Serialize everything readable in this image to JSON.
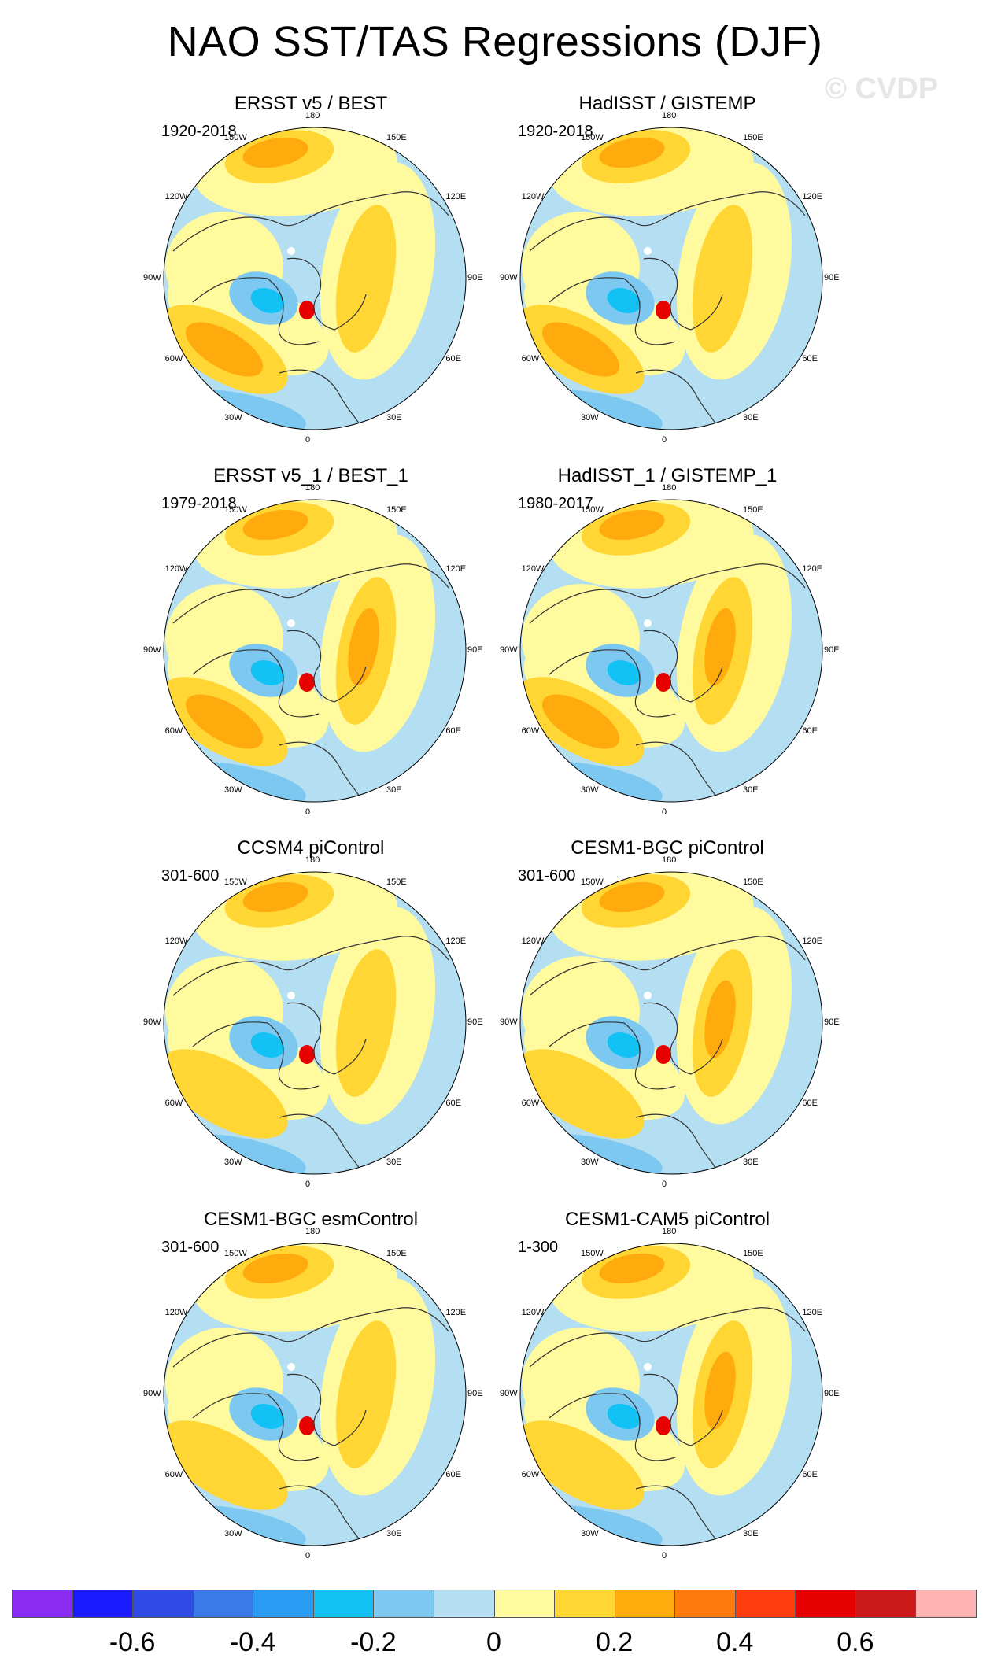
{
  "title": "NAO SST/TAS Regressions (DJF)",
  "watermark": "© CVDP",
  "longitude_labels": [
    "180",
    "150E",
    "120E",
    "90E",
    "60E",
    "30E",
    "0",
    "30W",
    "60W",
    "90W",
    "120W",
    "150W"
  ],
  "panels": [
    {
      "title": "ERSST v5 / BEST",
      "period": "1920-2018"
    },
    {
      "title": "HadISST / GISTEMP",
      "period": "1920-2018"
    },
    {
      "title": "ERSST v5_1 / BEST_1",
      "period": "1979-2018"
    },
    {
      "title": "HadISST_1 / GISTEMP_1",
      "period": "1980-2017"
    },
    {
      "title": "CCSM4 piControl",
      "period": "301-600"
    },
    {
      "title": "CESM1-BGC piControl",
      "period": "301-600"
    },
    {
      "title": "CESM1-BGC esmControl",
      "period": "301-600"
    },
    {
      "title": "CESM1-CAM5 piControl",
      "period": "1-300"
    }
  ],
  "colorbar": {
    "colors": [
      "#8b2cf2",
      "#1a1aff",
      "#2f4de6",
      "#3a7ae8",
      "#2a9bf2",
      "#12c2f5",
      "#7cc8f0",
      "#b4def2",
      "#fffa9e",
      "#ffd633",
      "#ffaa0d",
      "#ff7a0d",
      "#ff3d0d",
      "#e60000",
      "#cc1a1a",
      "#ffb3b3"
    ],
    "tick_labels": [
      "-0.6",
      "-0.4",
      "-0.2",
      "0",
      "0.2",
      "0.4",
      "0.6"
    ]
  },
  "map_colors": {
    "ocean_base": "#b4def2",
    "pale_yellow": "#fffa9e",
    "yellow": "#ffd633",
    "orange": "#ffaa0d",
    "light_blue": "#7cc8f0",
    "blue": "#12c2f5",
    "red": "#e60000"
  }
}
